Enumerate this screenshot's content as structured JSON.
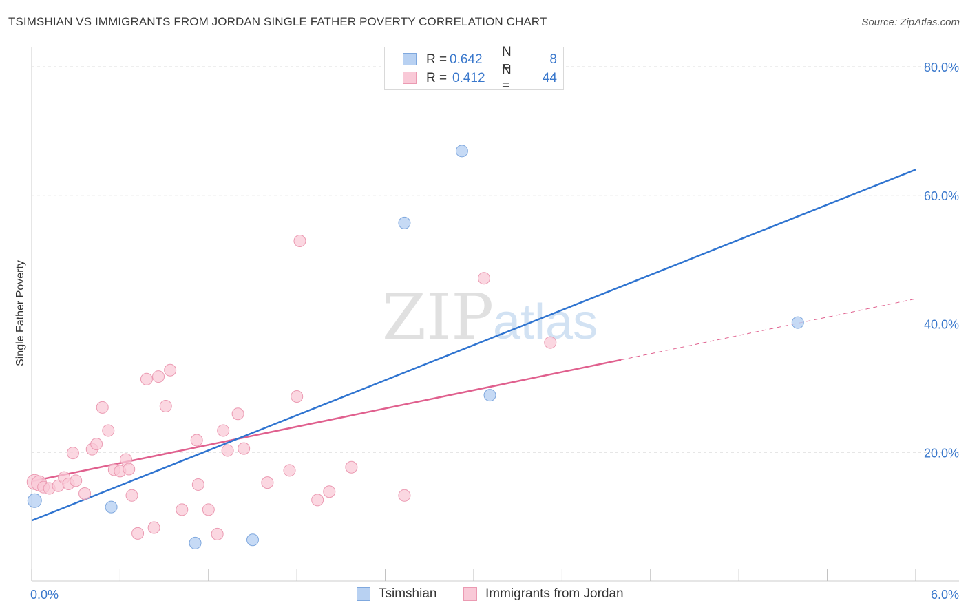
{
  "header": {
    "title": "TSIMSHIAN VS IMMIGRANTS FROM JORDAN SINGLE FATHER POVERTY CORRELATION CHART",
    "source": "Source: ZipAtlas.com"
  },
  "watermark": {
    "zip": "ZIP",
    "atlas": "atlas"
  },
  "legend": {
    "rows": [
      {
        "r_label": "R =",
        "r_value": "0.642",
        "n_label": "N =",
        "n_value": "8"
      },
      {
        "r_label": "R =",
        "r_value": "0.412",
        "n_label": "N =",
        "n_value": "44"
      }
    ]
  },
  "bottom_legend": {
    "series1": "Tsimshian",
    "series2": "Immigrants from Jordan"
  },
  "colors": {
    "tsimshian_fill": "#b8d1f2",
    "tsimshian_stroke": "#7fa8de",
    "tsimshian_line": "#2f74d0",
    "jordan_fill": "#f9c9d7",
    "jordan_stroke": "#eb9ab2",
    "jordan_line": "#e0608e",
    "tick_label": "#3a78cc",
    "grid": "#dddddd"
  },
  "chart_data": {
    "type": "scatter",
    "title": "TSIMSHIAN VS IMMIGRANTS FROM JORDAN SINGLE FATHER POVERTY CORRELATION CHART",
    "xlabel": "",
    "ylabel": "Single Father Poverty",
    "xlim": [
      0,
      6
    ],
    "ylim": [
      0,
      80
    ],
    "x_tick_labels": [
      {
        "value": 0,
        "label": "0.0%"
      },
      {
        "value": 6,
        "label": "6.0%"
      }
    ],
    "y_tick_labels": [
      {
        "value": 20,
        "label": "20.0%"
      },
      {
        "value": 40,
        "label": "40.0%"
      },
      {
        "value": 60,
        "label": "60.0%"
      },
      {
        "value": 80,
        "label": "80.0%"
      }
    ],
    "series": [
      {
        "name": "Tsimshian",
        "points": [
          [
            0.02,
            12.5
          ],
          [
            0.54,
            11.5
          ],
          [
            1.11,
            5.9
          ],
          [
            1.5,
            6.4
          ],
          [
            2.53,
            55.7
          ],
          [
            2.92,
            66.9
          ],
          [
            3.11,
            28.9
          ],
          [
            5.2,
            40.2
          ]
        ],
        "trend": {
          "x": [
            0,
            6
          ],
          "y": [
            9.4,
            64.0
          ]
        }
      },
      {
        "name": "Immigrants from Jordan",
        "points": [
          [
            0.02,
            15.4
          ],
          [
            0.05,
            15.2
          ],
          [
            0.08,
            14.6
          ],
          [
            0.12,
            14.4
          ],
          [
            0.18,
            14.8
          ],
          [
            0.22,
            16.1
          ],
          [
            0.25,
            15.1
          ],
          [
            0.28,
            19.9
          ],
          [
            0.3,
            15.6
          ],
          [
            0.36,
            13.6
          ],
          [
            0.41,
            20.5
          ],
          [
            0.44,
            21.3
          ],
          [
            0.48,
            27.0
          ],
          [
            0.52,
            23.4
          ],
          [
            0.56,
            17.3
          ],
          [
            0.6,
            17.1
          ],
          [
            0.64,
            18.9
          ],
          [
            0.66,
            17.4
          ],
          [
            0.68,
            13.3
          ],
          [
            0.72,
            7.4
          ],
          [
            0.78,
            31.4
          ],
          [
            0.83,
            8.3
          ],
          [
            0.86,
            31.8
          ],
          [
            0.91,
            27.2
          ],
          [
            0.94,
            32.8
          ],
          [
            1.02,
            11.1
          ],
          [
            1.12,
            21.9
          ],
          [
            1.13,
            15.0
          ],
          [
            1.2,
            11.1
          ],
          [
            1.26,
            7.3
          ],
          [
            1.3,
            23.4
          ],
          [
            1.33,
            20.3
          ],
          [
            1.4,
            26.0
          ],
          [
            1.44,
            20.6
          ],
          [
            1.6,
            15.3
          ],
          [
            1.75,
            17.2
          ],
          [
            1.8,
            28.7
          ],
          [
            1.82,
            52.9
          ],
          [
            1.94,
            12.6
          ],
          [
            2.02,
            13.9
          ],
          [
            2.17,
            17.7
          ],
          [
            2.53,
            13.3
          ],
          [
            3.07,
            47.1
          ],
          [
            3.52,
            37.1
          ]
        ],
        "trend": {
          "x": [
            0,
            4.0
          ],
          "y": [
            15.5,
            34.4
          ]
        },
        "trend_extension": {
          "x": [
            4.0,
            6.0
          ],
          "y": [
            34.4,
            43.9
          ]
        }
      }
    ]
  }
}
